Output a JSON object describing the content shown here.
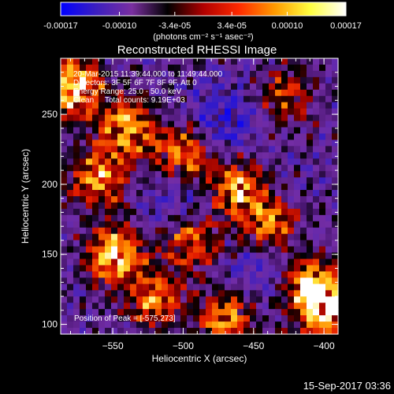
{
  "colorbar": {
    "tick_labels": [
      "-0.00017",
      "-0.00010",
      "-3.4e-05",
      "3.4e-05",
      "0.00010",
      "0.00017"
    ],
    "unit_label": "(photons cm⁻² s⁻¹ asec⁻²)",
    "range": [
      -0.00017,
      0.00017
    ],
    "colors": [
      "#0000ff",
      "#3c1fbf",
      "#7a2fa0",
      "#000000",
      "#b00000",
      "#ff2a00",
      "#ff9a00",
      "#ffff40",
      "#ffffff"
    ]
  },
  "chart_data": {
    "type": "heatmap",
    "title": "Reconstructed RHESSI Image",
    "xlabel": "Heliocentric X (arcsec)",
    "ylabel": "Heliocentric Y (arcsec)",
    "xlim": [
      -587,
      -390
    ],
    "ylim": [
      93,
      290
    ],
    "x_ticks": [
      -550,
      -500,
      -450,
      -400
    ],
    "x_tick_labels": [
      "−550",
      "−500",
      "−450",
      "−400"
    ],
    "y_ticks": [
      100,
      150,
      200,
      250
    ],
    "y_tick_labels": [
      "100",
      "150",
      "200",
      "250"
    ],
    "annotations": [
      "20-Mar-2015 11:39:44.000 to 11:49:44.000",
      "Detectors: 3F 5F 6F 7F 8F 9F, Att 0",
      "Energy Range: 25.0 - 50.0 keV",
      "Clean     Total counts: 9.19E+03"
    ],
    "peak_label": "Position of Peak = [-575,273]",
    "peak": [
      -575,
      273
    ],
    "bright_sources": [
      {
        "x": -578,
        "y": 270,
        "level": 0.95
      },
      {
        "x": -540,
        "y": 240,
        "level": 0.7
      },
      {
        "x": -548,
        "y": 150,
        "level": 0.8
      },
      {
        "x": -500,
        "y": 222,
        "level": 0.6
      },
      {
        "x": -462,
        "y": 198,
        "level": 0.65
      },
      {
        "x": -440,
        "y": 170,
        "level": 0.5
      },
      {
        "x": -398,
        "y": 110,
        "level": 0.9
      },
      {
        "x": -410,
        "y": 128,
        "level": 0.7
      },
      {
        "x": -470,
        "y": 105,
        "level": 0.55
      },
      {
        "x": -520,
        "y": 118,
        "level": 0.5
      },
      {
        "x": -560,
        "y": 205,
        "level": 0.55
      },
      {
        "x": -495,
        "y": 160,
        "level": 0.45
      },
      {
        "x": -428,
        "y": 262,
        "level": 0.35
      }
    ],
    "dim_regions": [
      {
        "x": -470,
        "y": 245,
        "level": -0.45
      },
      {
        "x": -505,
        "y": 190,
        "level": -0.3
      },
      {
        "x": -445,
        "y": 140,
        "level": -0.3
      }
    ]
  },
  "timestamp": "15-Sep-2017 03:36"
}
